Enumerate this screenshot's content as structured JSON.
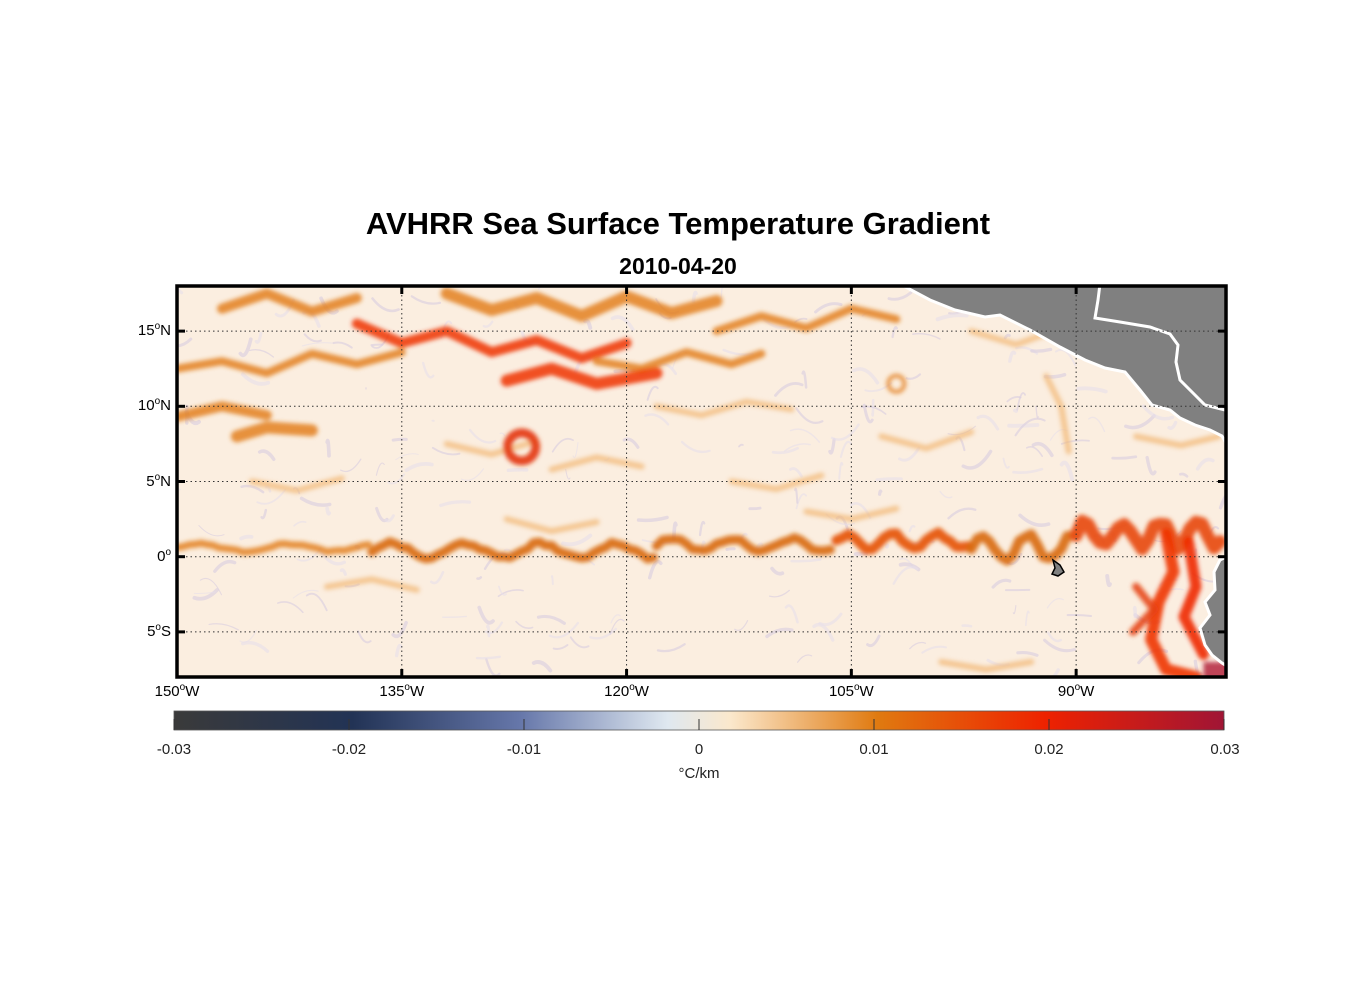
{
  "title": "AVHRR Sea Surface Temperature Gradient",
  "subtitle": "2010-04-20",
  "map": {
    "projection": "equirectangular",
    "lon_range": [
      -150,
      -80
    ],
    "lat_range": [
      -8,
      18
    ],
    "lat_ticks": [
      {
        "value": 15,
        "num": "15",
        "hemi": "N"
      },
      {
        "value": 10,
        "num": "10",
        "hemi": "N"
      },
      {
        "value": 5,
        "num": "5",
        "hemi": "N"
      },
      {
        "value": 0,
        "num": "0",
        "hemi": ""
      },
      {
        "value": -5,
        "num": "5",
        "hemi": "S"
      }
    ],
    "lon_ticks": [
      {
        "value": -150,
        "num": "150",
        "hemi": "W"
      },
      {
        "value": -135,
        "num": "135",
        "hemi": "W"
      },
      {
        "value": -120,
        "num": "120",
        "hemi": "W"
      },
      {
        "value": -105,
        "num": "105",
        "hemi": "W"
      },
      {
        "value": -90,
        "num": "90",
        "hemi": "W"
      }
    ],
    "degree_symbol": "o",
    "grid": "dotted",
    "land_color": "#808080",
    "ocean_background": "#fbeee0"
  },
  "colorbar": {
    "orientation": "horizontal",
    "range": [
      -0.03,
      0.03
    ],
    "tick_labels": [
      "-0.03",
      "-0.02",
      "-0.01",
      "0",
      "0.01",
      "0.02",
      "0.03"
    ],
    "unit": "°C/km",
    "colors": [
      "#3a3a3a",
      "#223355",
      "#6677aa",
      "#dfe8f0",
      "#fbe8cc",
      "#e07a10",
      "#ee2200",
      "#a01535"
    ]
  },
  "chart_data": {
    "type": "heatmap",
    "title": "AVHRR Sea Surface Temperature Gradient",
    "subtitle": "2010-04-20",
    "variable": "SST gradient",
    "unit": "°C/km",
    "value_range": [
      -0.03,
      0.03
    ],
    "x_range": [
      -150,
      -80
    ],
    "y_range": [
      -8,
      18
    ],
    "features": [
      {
        "name": "equatorial front",
        "lat": 0.5,
        "lon_start": -150,
        "lon_end": -80,
        "approx_value": 0.011
      },
      {
        "name": "eddy",
        "lat": 7.5,
        "lon": -127,
        "approx_value": 0.02
      },
      {
        "name": "northern band",
        "lat_range": [
          12,
          18
        ],
        "lon_range": [
          -150,
          -110
        ],
        "approx_value": 0.012
      },
      {
        "name": "south american coastal upwelling",
        "lat_range": [
          -8,
          1
        ],
        "lon_range": [
          -85,
          -80
        ],
        "approx_value": 0.02
      }
    ]
  }
}
